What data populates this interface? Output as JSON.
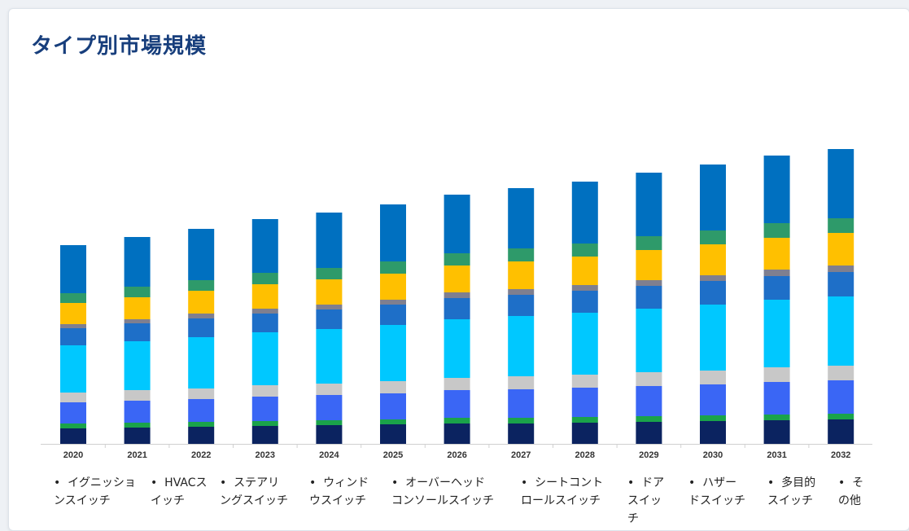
{
  "title": "タイプ別市場規模",
  "chart_data": {
    "type": "bar",
    "stacked": true,
    "title": "タイプ別市場規模",
    "xlabel": "",
    "ylabel": "",
    "categories": [
      "2020",
      "2021",
      "2022",
      "2023",
      "2024",
      "2025",
      "2026",
      "2027",
      "2028",
      "2029",
      "2030",
      "2031",
      "2032"
    ],
    "series": [
      {
        "name": "イグニッションスイッチ",
        "color": "#0b2360",
        "values": [
          19,
          20,
          21,
          22,
          23,
          24,
          25,
          25,
          26,
          27,
          28,
          29,
          30
        ]
      },
      {
        "name": "HVACスイッチ",
        "color": "#1aa34a",
        "values": [
          6,
          6,
          6,
          6,
          6,
          6,
          7,
          7,
          7,
          7,
          7,
          7,
          7
        ]
      },
      {
        "name": "ステアリングスイッチ",
        "color": "#3a66f5",
        "values": [
          26,
          27,
          28,
          30,
          31,
          32,
          34,
          35,
          36,
          37,
          38,
          40,
          41
        ]
      },
      {
        "name": "ウィンドウスイッチ",
        "color": "#c8c8c8",
        "values": [
          12,
          13,
          13,
          14,
          14,
          15,
          15,
          16,
          16,
          17,
          17,
          18,
          18
        ]
      },
      {
        "name": "オーバーヘッドコンソールスイッチ",
        "color": "#00c8ff",
        "values": [
          58,
          60,
          63,
          65,
          67,
          69,
          72,
          74,
          76,
          78,
          81,
          83,
          85
        ]
      },
      {
        "name": "シートコントロールスイッチ",
        "color": "#1e6fc8",
        "values": [
          21,
          22,
          23,
          23,
          24,
          25,
          26,
          26,
          27,
          28,
          29,
          29,
          30
        ]
      },
      {
        "name": "ドアスイッチ",
        "color": "#7f7f8f",
        "values": [
          5,
          5,
          6,
          6,
          6,
          6,
          7,
          7,
          7,
          7,
          7,
          8,
          8
        ]
      },
      {
        "name": "ハザードスイッチ",
        "color": "#ffc000",
        "values": [
          26,
          27,
          28,
          30,
          31,
          32,
          33,
          34,
          35,
          37,
          38,
          39,
          40
        ]
      },
      {
        "name": "多目的スイッチ",
        "color": "#2e9a6a",
        "values": [
          12,
          13,
          13,
          14,
          14,
          15,
          15,
          16,
          16,
          17,
          17,
          18,
          18
        ]
      },
      {
        "name": "その他",
        "color": "#0070c0",
        "values": [
          59,
          61,
          63,
          66,
          68,
          70,
          72,
          74,
          76,
          78,
          81,
          83,
          85
        ]
      }
    ],
    "grid": false,
    "legend": "bottom"
  }
}
